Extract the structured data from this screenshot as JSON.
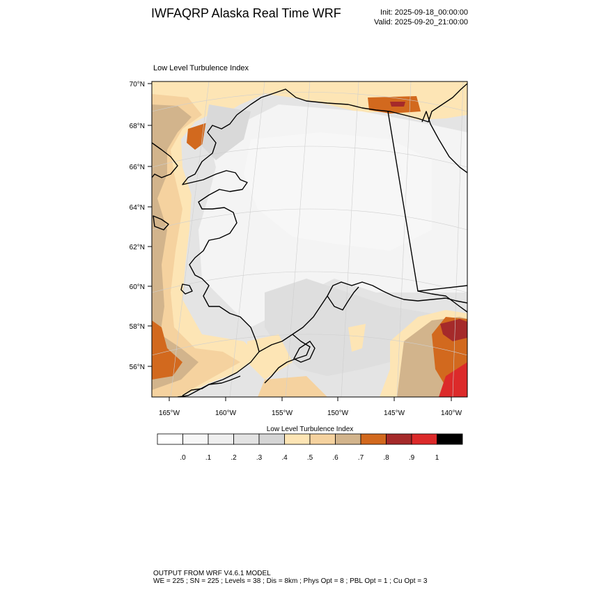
{
  "header": {
    "title": "IWFAQRP Alaska Real Time WRF",
    "init": "Init: 2025-09-18_00:00:00",
    "valid": "Valid: 2025-09-20_21:00:00"
  },
  "plot": {
    "title": "Low Level Turbulence Index",
    "lat_labels": [
      "70°N",
      "68°N",
      "66°N",
      "64°N",
      "62°N",
      "60°N",
      "58°N",
      "56°N"
    ],
    "lon_labels": [
      "165°W",
      "160°W",
      "155°W",
      "150°W",
      "145°W",
      "140°W"
    ]
  },
  "colorbar": {
    "title": "Low Level Turbulence Index",
    "colors": [
      "#ffffff",
      "#f7f7f7",
      "#efefef",
      "#e3e3e3",
      "#d5d5d5",
      "#fde5b5",
      "#f5d29f",
      "#d2b48c",
      "#d2691e",
      "#a52a2a",
      "#dc2a2a",
      "#000000"
    ],
    "labels": [
      ".0",
      ".1",
      ".2",
      ".3",
      ".4",
      ".5",
      ".6",
      ".7",
      ".8",
      ".9",
      "1"
    ]
  },
  "footer": {
    "line1": "OUTPUT FROM WRF V4.6.1 MODEL",
    "line2": "WE = 225 ; SN = 225 ; Levels = 38 ; Dis = 8km ; Phys Opt = 8 ; PBL Opt = 1 ; Cu Opt = 3"
  }
}
